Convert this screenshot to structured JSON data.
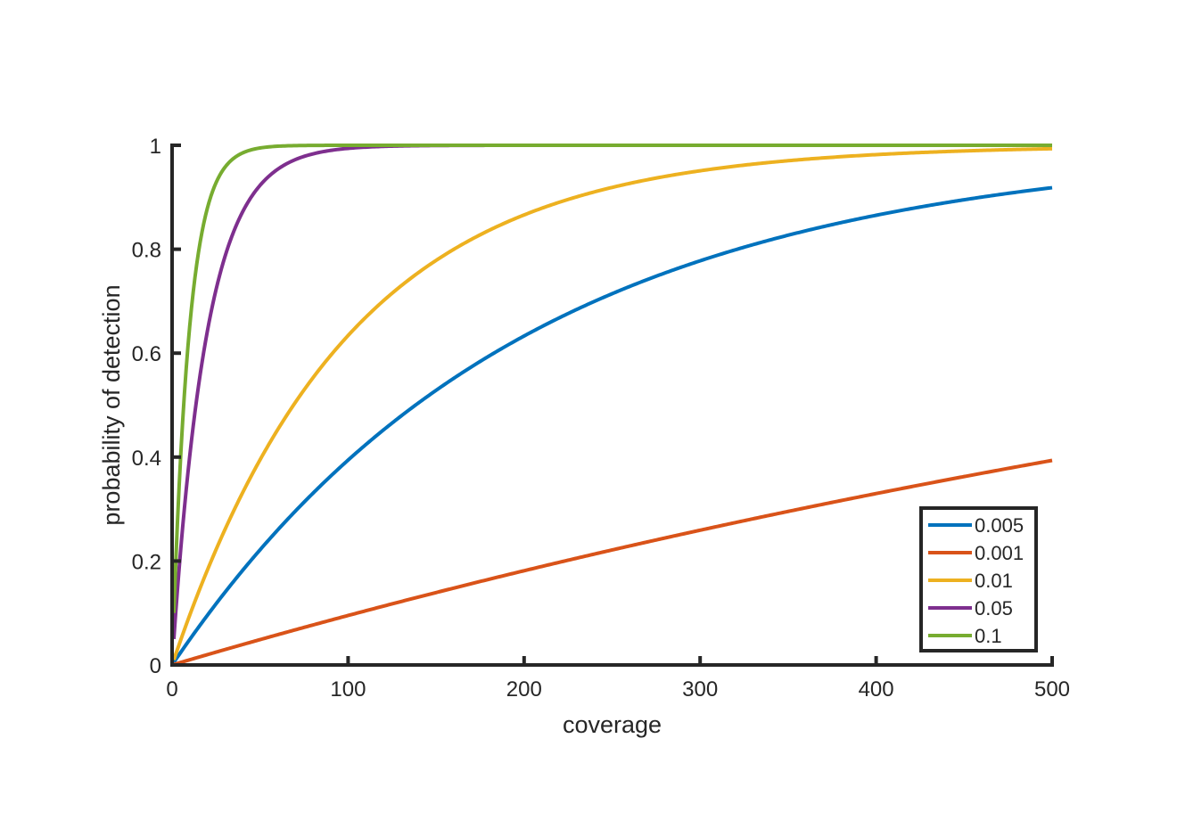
{
  "chart_data": {
    "type": "line",
    "title": "",
    "xlabel": "coverage",
    "ylabel": "probability of detection",
    "xlim": [
      0,
      500
    ],
    "ylim": [
      0,
      1
    ],
    "xticks": [
      0,
      100,
      200,
      300,
      400,
      500
    ],
    "yticks": [
      0,
      0.2,
      0.4,
      0.6,
      0.8,
      1
    ],
    "xtick_labels": [
      "0",
      "100",
      "200",
      "300",
      "400",
      "500"
    ],
    "ytick_labels": [
      "0",
      "0.2",
      "0.4",
      "0.6",
      "0.8",
      "1"
    ],
    "grid": false,
    "legend_position": "bottom-right",
    "x_domain": [
      1,
      500
    ],
    "series": [
      {
        "name": "0.005",
        "rate": 0.005,
        "color": "#0072BD"
      },
      {
        "name": "0.001",
        "rate": 0.001,
        "color": "#D95319"
      },
      {
        "name": "0.01",
        "rate": 0.01,
        "color": "#EDB120"
      },
      {
        "name": "0.05",
        "rate": 0.05,
        "color": "#7E2F8E"
      },
      {
        "name": "0.1",
        "rate": 0.1,
        "color": "#77AC30"
      }
    ]
  }
}
